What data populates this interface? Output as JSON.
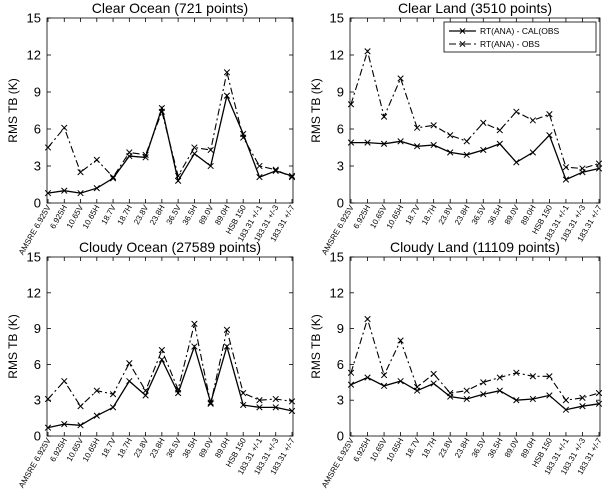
{
  "chart_data": [
    {
      "type": "line",
      "title": "Clear Ocean (721 points)",
      "ylabel": "RMS TB (K)",
      "ylim": [
        0,
        15
      ],
      "yticks": [
        0,
        3,
        6,
        9,
        12,
        15
      ],
      "grid": false,
      "categories": [
        "AMSRE 6.925V",
        "6.925H",
        "10.65V",
        "10.65H",
        "18.7V",
        "18.7H",
        "23.8V",
        "23.8H",
        "36.5V",
        "36.5H",
        "89.0V",
        "89.0H",
        "HSB 150",
        "183.31 +/-1",
        "183.31 +/-3",
        "183.31 +/-7"
      ],
      "series": [
        {
          "values": [
            0.8,
            1.0,
            0.8,
            1.2,
            2.0,
            3.8,
            3.7,
            7.7,
            1.8,
            4.0,
            3.0,
            8.7,
            5.6,
            2.1,
            2.6,
            2.2
          ]
        },
        {
          "values": [
            4.5,
            6.1,
            2.5,
            3.5,
            2.1,
            4.1,
            3.9,
            7.4,
            2.2,
            4.5,
            4.3,
            10.6,
            5.3,
            3.0,
            2.7,
            2.1
          ]
        }
      ]
    },
    {
      "type": "line",
      "title": "Clear Land (3510 points)",
      "ylabel": "RMS TB (K)",
      "ylim": [
        0,
        15
      ],
      "yticks": [
        0,
        3,
        6,
        9,
        12,
        15
      ],
      "grid": false,
      "legend": {
        "position": "top-right",
        "entries": [
          "RT(ANA) - CAL(OBS",
          "RT(ANA) - OBS"
        ]
      },
      "categories": [
        "AMSRE 6.925V",
        "6.925H",
        "10.65V",
        "10.65H",
        "18.7V",
        "18.7H",
        "23.8V",
        "23.8H",
        "36.5V",
        "36.5H",
        "89.0V",
        "89.0H",
        "HSB 150",
        "183.31 +/-1",
        "183.31 +/-3",
        "183.31 +/-7"
      ],
      "series": [
        {
          "name": "RT(ANA) - CAL(OBS",
          "values": [
            4.9,
            4.9,
            4.8,
            5.0,
            4.6,
            4.7,
            4.1,
            3.9,
            4.3,
            4.8,
            3.3,
            4.1,
            5.5,
            1.9,
            2.5,
            2.8
          ]
        },
        {
          "name": "RT(ANA) - OBS",
          "values": [
            8.0,
            12.3,
            7.0,
            10.1,
            6.1,
            6.3,
            5.5,
            5.0,
            6.5,
            5.9,
            7.4,
            6.7,
            7.2,
            2.9,
            2.8,
            3.2
          ]
        }
      ]
    },
    {
      "type": "line",
      "title": "Cloudy Ocean (27589 points)",
      "ylabel": "RMS TB (K)",
      "ylim": [
        0,
        15
      ],
      "yticks": [
        0,
        3,
        6,
        9,
        12,
        15
      ],
      "grid": false,
      "categories": [
        "AMSRE 6.925V",
        "6.925H",
        "10.65V",
        "10.65H",
        "18.7V",
        "18.7H",
        "23.8V",
        "23.8H",
        "36.5V",
        "36.5H",
        "89.0V",
        "89.0H",
        "HSB 150",
        "183.31 +/-1",
        "183.31 +/-3",
        "183.31 +/-7"
      ],
      "series": [
        {
          "values": [
            0.7,
            1.0,
            0.9,
            1.7,
            2.4,
            4.6,
            3.4,
            6.4,
            3.6,
            7.5,
            2.8,
            7.5,
            2.6,
            2.4,
            2.4,
            2.1
          ]
        },
        {
          "values": [
            3.1,
            4.6,
            2.5,
            3.8,
            3.5,
            6.1,
            3.8,
            7.2,
            3.9,
            9.4,
            2.7,
            8.9,
            3.6,
            3.0,
            3.1,
            2.9
          ]
        }
      ]
    },
    {
      "type": "line",
      "title": "Cloudy Land (11109 points)",
      "ylabel": "RMS TB (K)",
      "ylim": [
        0,
        15
      ],
      "yticks": [
        0,
        3,
        6,
        9,
        12,
        15
      ],
      "grid": false,
      "categories": [
        "AMSRE 6.925V",
        "6.925H",
        "10.65V",
        "10.65H",
        "18.7V",
        "18.7H",
        "23.8V",
        "23.8H",
        "36.5V",
        "36.5H",
        "89.0V",
        "89.0H",
        "HSB 150",
        "183.31 +/-1",
        "183.31 +/-3",
        "183.31 +/-7"
      ],
      "series": [
        {
          "values": [
            4.3,
            4.9,
            4.2,
            4.6,
            3.8,
            4.4,
            3.3,
            3.1,
            3.5,
            3.8,
            3.0,
            3.1,
            3.4,
            2.2,
            2.5,
            2.7
          ]
        },
        {
          "values": [
            5.3,
            9.8,
            5.1,
            8.0,
            4.1,
            5.2,
            3.6,
            3.8,
            4.5,
            4.9,
            5.3,
            5.0,
            5.0,
            3.0,
            3.2,
            3.6
          ]
        }
      ]
    }
  ]
}
